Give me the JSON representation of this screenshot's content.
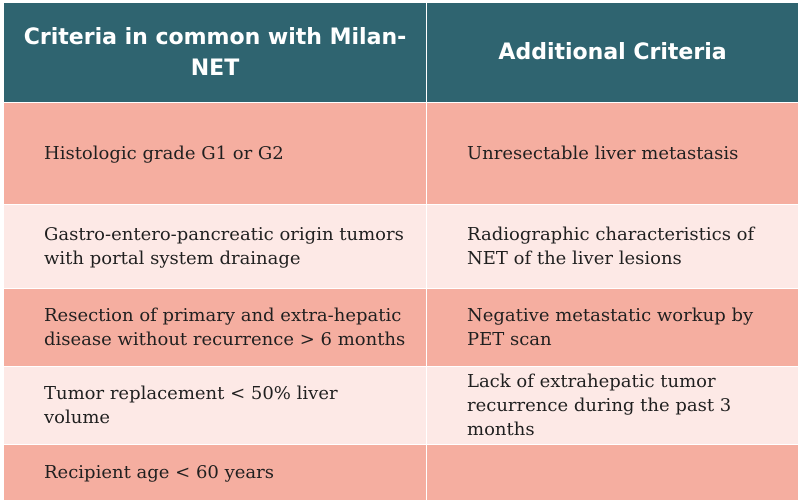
{
  "table": {
    "headers": [
      "Criteria in common with Milan-NET",
      "Additional Criteria"
    ],
    "rows": [
      [
        "Histologic grade G1 or G2",
        "Unresectable liver metastasis"
      ],
      [
        "Gastro-entero-pancreatic origin tumors with portal system drainage",
        "Radiographic characteristics of NET of the liver lesions"
      ],
      [
        "Resection of primary and extra-hepatic disease without recurrence > 6 months",
        "Negative metastatic workup by PET scan"
      ],
      [
        "Tumor replacement < 50% liver volume",
        "Lack of extrahepatic tumor recurrence during the past 3 months"
      ],
      [
        "Recipient age < 60 years",
        ""
      ]
    ]
  },
  "colors": {
    "header_bg": "#2f6470",
    "header_text": "#ffffff",
    "row_dark": "#f5aea0",
    "row_light": "#fde9e6",
    "body_text": "#1f1f1f"
  }
}
